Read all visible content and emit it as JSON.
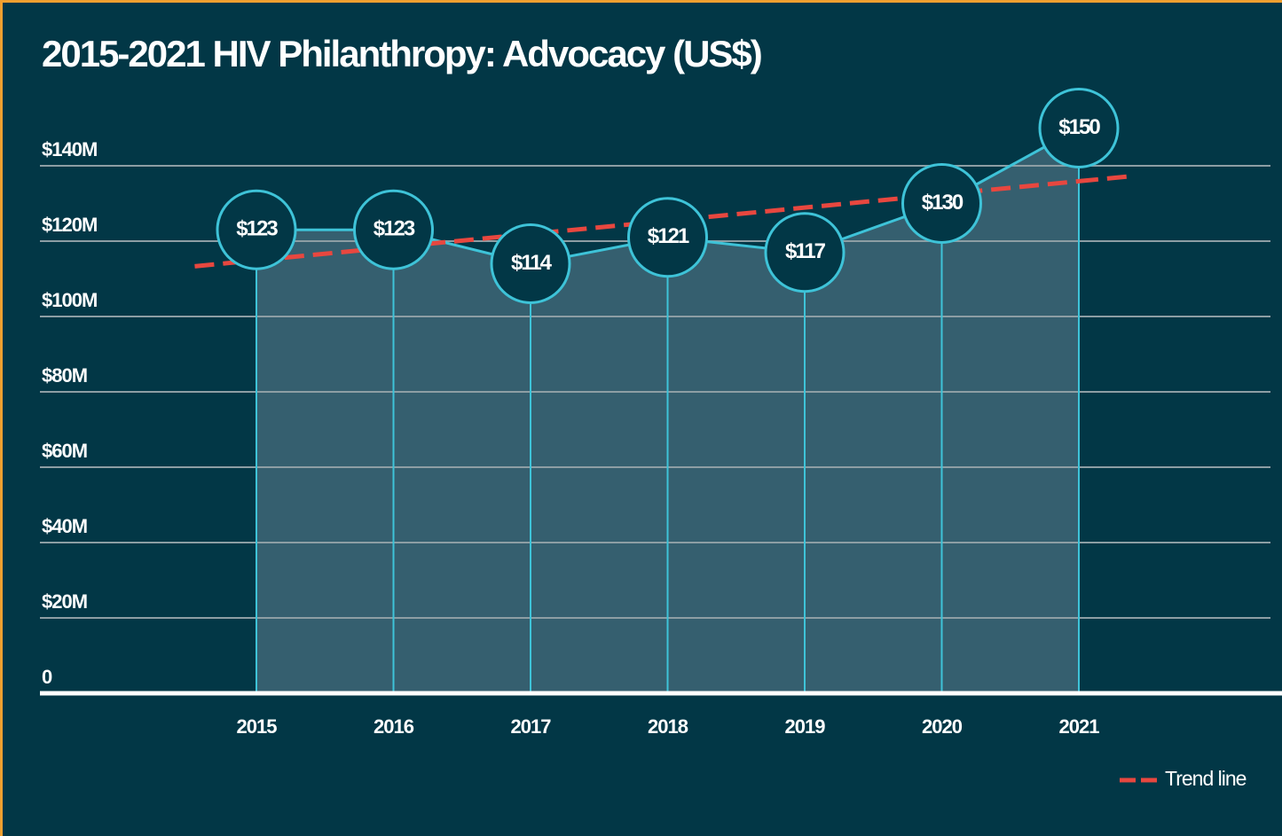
{
  "chart_data": {
    "type": "line",
    "title": "2015-2021 HIV Philanthropy: Advocacy (US$)",
    "categories": [
      "2015",
      "2016",
      "2017",
      "2018",
      "2019",
      "2020",
      "2021"
    ],
    "series": [
      {
        "name": "Advocacy",
        "color": "#3ec3d8",
        "values": [
          123,
          123,
          114,
          121,
          117,
          130,
          150
        ],
        "value_labels": [
          "$123",
          "$123",
          "$114",
          "$121",
          "$117",
          "$130",
          "$150"
        ]
      },
      {
        "name": "Trend line",
        "color": "#e8473f",
        "values": [
          114.9,
          118.4,
          121.9,
          125.4,
          128.9,
          132.4,
          135.9
        ]
      }
    ],
    "ylim": [
      0,
      140
    ],
    "yticks": [
      0,
      {
        "value": 20,
        "label": "$20M"
      },
      {
        "value": 40,
        "label": "$40M"
      },
      {
        "value": 60,
        "label": "$60M"
      },
      {
        "value": 80,
        "label": "$80M"
      },
      {
        "value": 100,
        "label": "$100M"
      },
      {
        "value": 120,
        "label": "$120M"
      },
      {
        "value": 140,
        "label": "$140M"
      }
    ],
    "grid": true,
    "legend": "bottom-right"
  }
}
